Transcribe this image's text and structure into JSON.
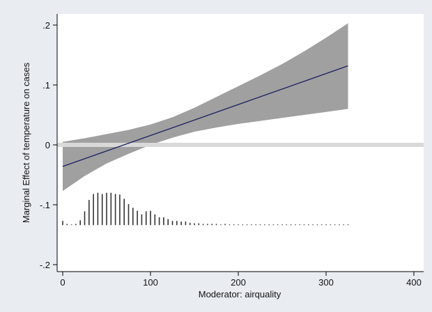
{
  "chart_data": {
    "type": "line",
    "title": "",
    "xlabel": "Moderator: airquality",
    "ylabel": "Marginal Effect of temperature on cases",
    "xlim": [
      0,
      400
    ],
    "ylim": [
      -0.2,
      0.2
    ],
    "x_ticks": [
      {
        "value": 0,
        "label": "0"
      },
      {
        "value": 100,
        "label": "100"
      },
      {
        "value": 200,
        "label": "200"
      },
      {
        "value": 300,
        "label": "300"
      },
      {
        "value": 400,
        "label": "400"
      }
    ],
    "y_ticks": [
      {
        "value": -0.2,
        "label": "-.2"
      },
      {
        "value": -0.1,
        "label": "-.1"
      },
      {
        "value": 0,
        "label": "0"
      },
      {
        "value": 0.1,
        "label": ".1"
      },
      {
        "value": 0.2,
        "label": ".2"
      }
    ],
    "grid": false,
    "reference_line": {
      "y": 0,
      "color": "#d9d9d9"
    },
    "marginal_effect_line": {
      "color": "#1a1f5c",
      "x": [
        0,
        325
      ],
      "y": [
        -0.036,
        0.132
      ]
    },
    "confidence_band": {
      "color": "#a0a0a0",
      "x": [
        0,
        25,
        50,
        75,
        100,
        125,
        150,
        175,
        200,
        225,
        250,
        275,
        300,
        325
      ],
      "lower": [
        -0.077,
        -0.052,
        -0.031,
        -0.015,
        0.0,
        0.012,
        0.022,
        0.029,
        0.035,
        0.04,
        0.045,
        0.05,
        0.055,
        0.06
      ],
      "upper": [
        0.005,
        0.011,
        0.018,
        0.025,
        0.034,
        0.046,
        0.062,
        0.08,
        0.098,
        0.116,
        0.135,
        0.156,
        0.179,
        0.203
      ]
    },
    "histogram": {
      "color": "#333333",
      "baseline": -0.134,
      "x": [
        0,
        5,
        10,
        15,
        20,
        25,
        30,
        35,
        40,
        45,
        50,
        55,
        60,
        65,
        70,
        75,
        80,
        85,
        90,
        95,
        100,
        105,
        110,
        115,
        120,
        125,
        130,
        135,
        140,
        145,
        150,
        155,
        160,
        165,
        170,
        175,
        180,
        185,
        190,
        195,
        200,
        205,
        210,
        215,
        220,
        225,
        230,
        235,
        240,
        245,
        250,
        255,
        260,
        265,
        270,
        275,
        280,
        285,
        290,
        295,
        300,
        305,
        310,
        315,
        320,
        325
      ],
      "top": [
        -0.127,
        -0.132,
        -0.133,
        -0.132,
        -0.126,
        -0.111,
        -0.092,
        -0.082,
        -0.08,
        -0.082,
        -0.08,
        -0.08,
        -0.082,
        -0.083,
        -0.09,
        -0.099,
        -0.105,
        -0.11,
        -0.116,
        -0.111,
        -0.11,
        -0.116,
        -0.121,
        -0.121,
        -0.124,
        -0.127,
        -0.127,
        -0.128,
        -0.128,
        -0.13,
        -0.131,
        -0.131,
        -0.132,
        -0.132,
        -0.132,
        -0.132,
        -0.133,
        -0.132,
        -0.133,
        -0.133,
        -0.133,
        -0.133,
        -0.133,
        -0.133,
        -0.133,
        -0.133,
        -0.133,
        -0.133,
        -0.133,
        -0.133,
        -0.133,
        -0.133,
        -0.133,
        -0.133,
        -0.133,
        -0.133,
        -0.133,
        -0.133,
        -0.133,
        -0.133,
        -0.133,
        -0.133,
        -0.133,
        -0.133,
        -0.133,
        -0.133
      ]
    }
  }
}
